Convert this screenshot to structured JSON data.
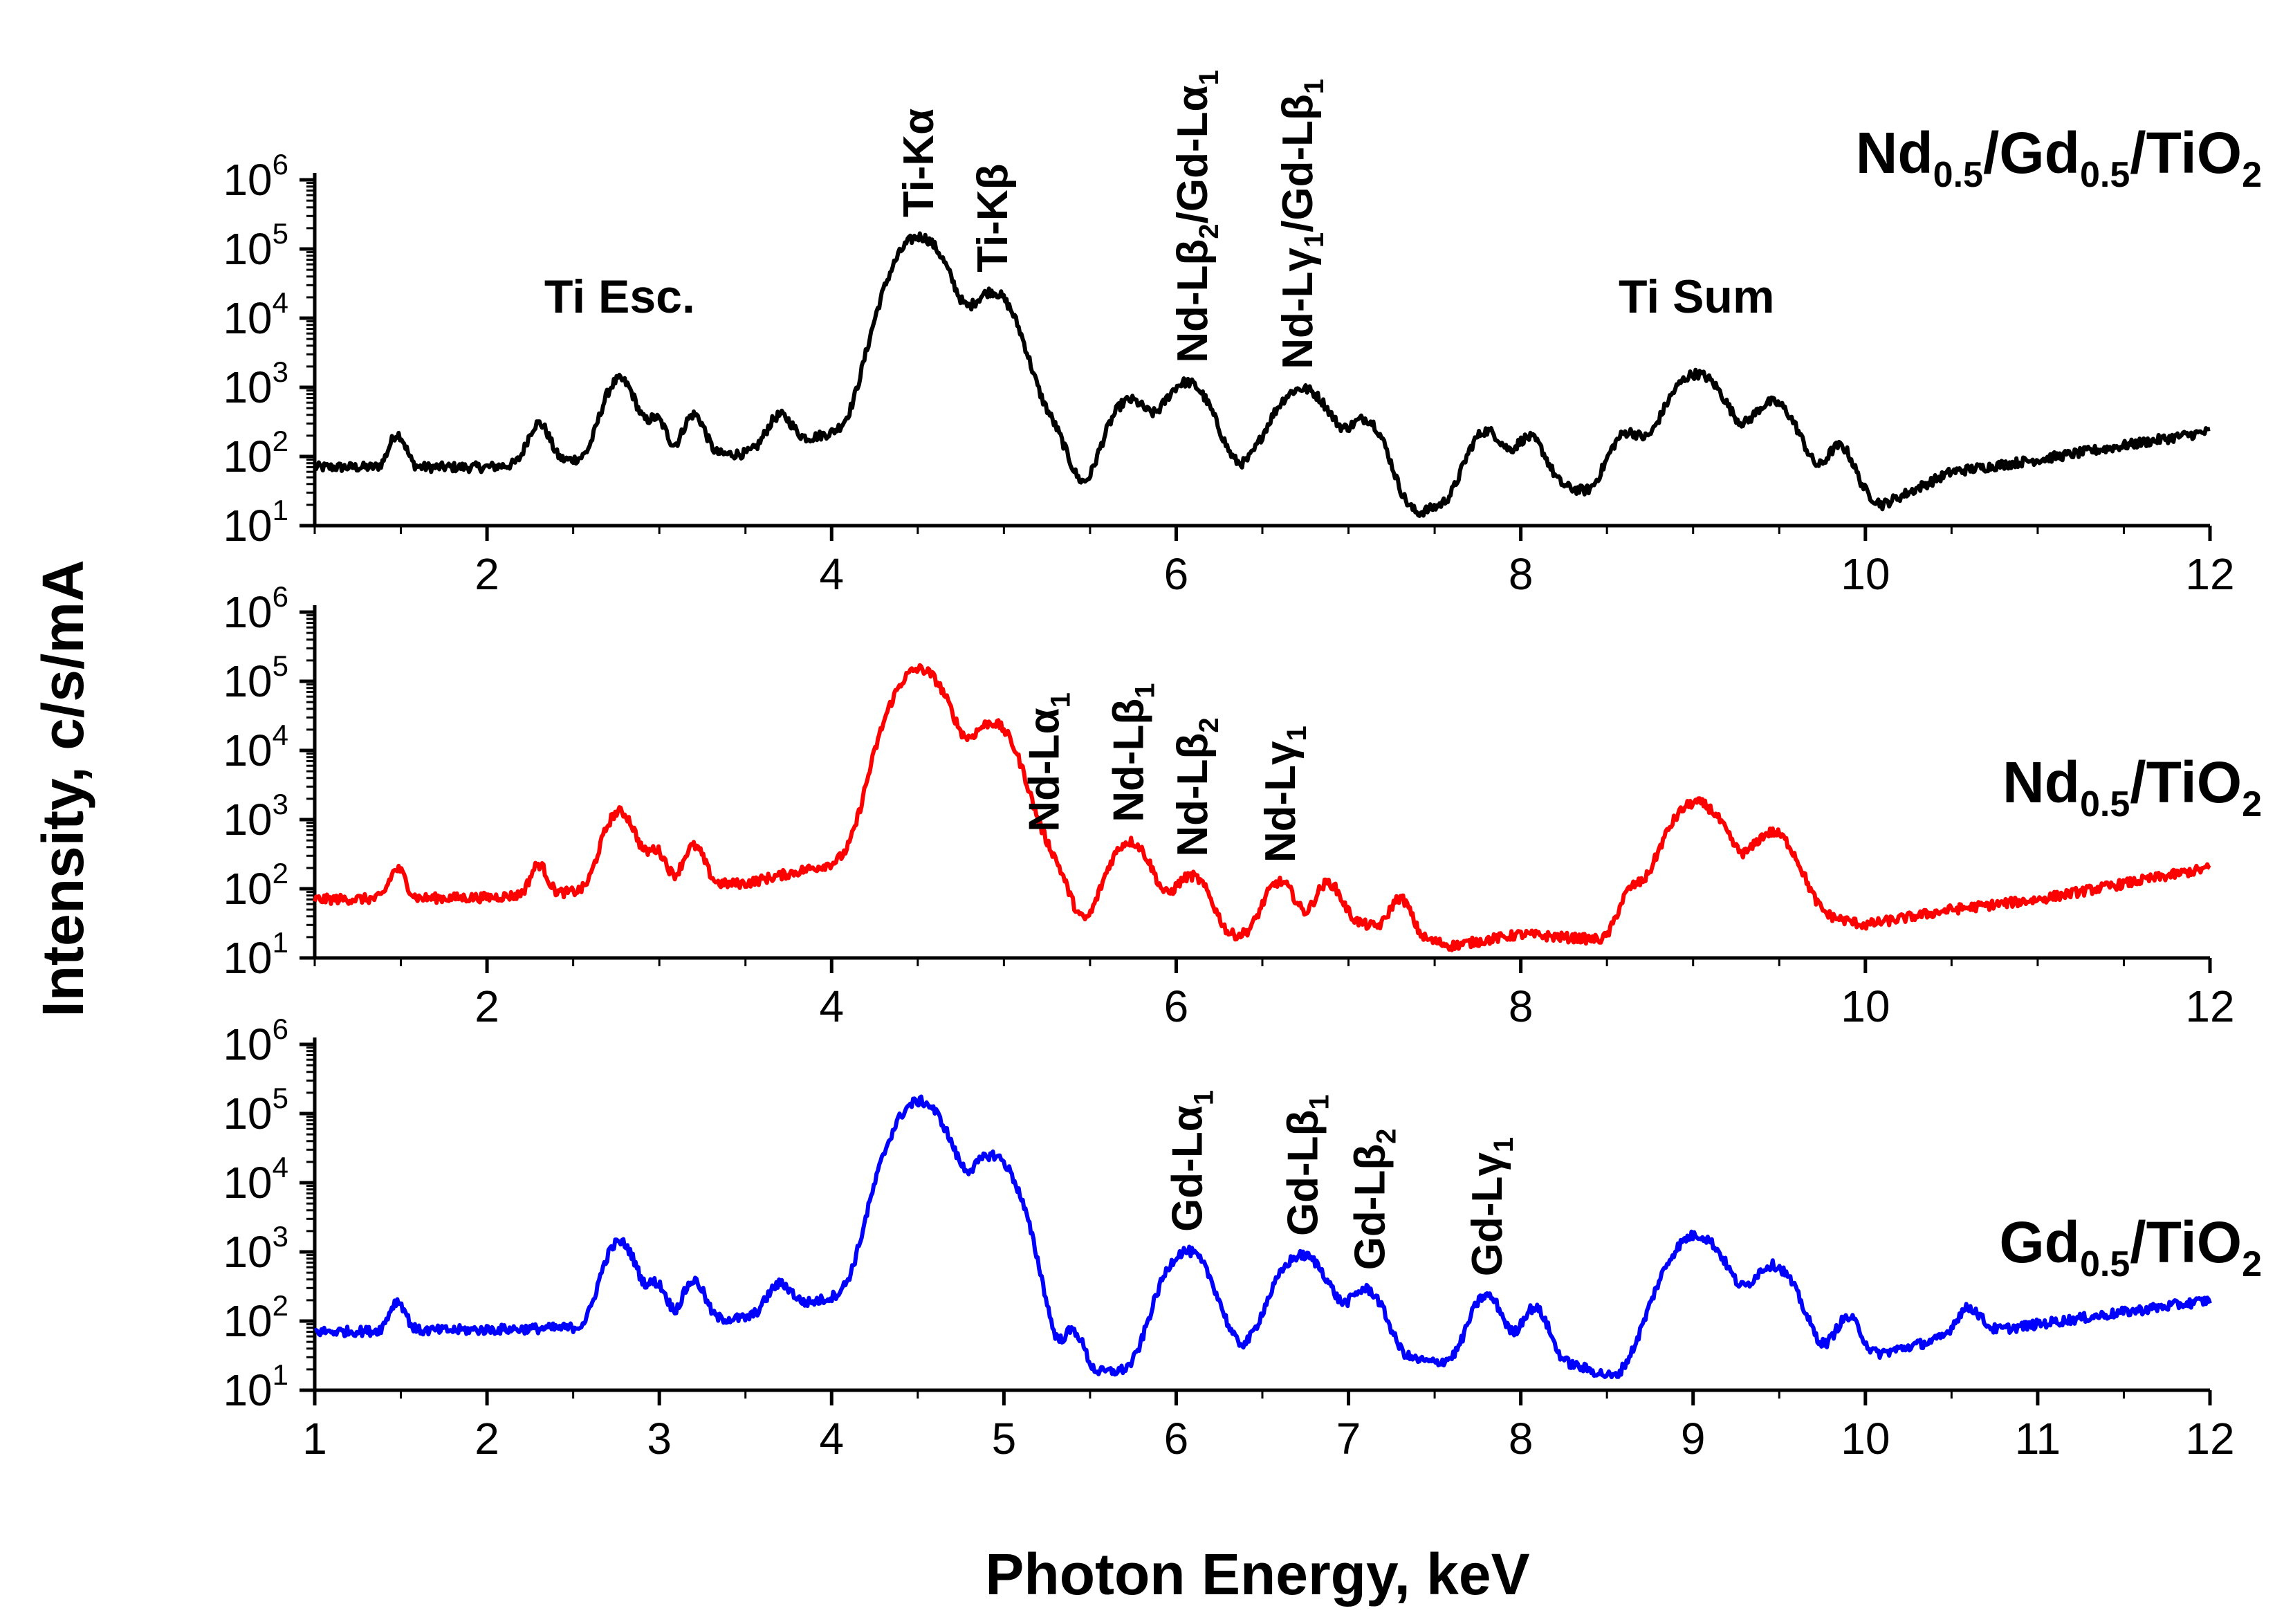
{
  "chart_data": {
    "type": "line",
    "scale": "log-y",
    "xlabel": "Photon Energy, keV",
    "ylabel": "Intensity, c/s/mA",
    "xlim": [
      1,
      12
    ],
    "ylim": [
      10,
      1000000
    ],
    "y_ticks": [
      {
        "base": "10",
        "exp": "1"
      },
      {
        "base": "10",
        "exp": "2"
      },
      {
        "base": "10",
        "exp": "3"
      },
      {
        "base": "10",
        "exp": "4"
      },
      {
        "base": "10",
        "exp": "5"
      },
      {
        "base": "10",
        "exp": "6"
      }
    ],
    "x_ticks_top": [
      "2",
      "4",
      "6",
      "8",
      "10",
      "12"
    ],
    "x_ticks_bottom": [
      "1",
      "2",
      "3",
      "4",
      "5",
      "6",
      "7",
      "8",
      "9",
      "10",
      "11",
      "12"
    ],
    "panels": [
      {
        "color": "#000000",
        "title": {
          "p1": "Nd",
          "s1": "0.5",
          "p2": "/Gd",
          "s2": "0.5",
          "p3": "/TiO",
          "s3": "2"
        },
        "baseline": [
          [
            1.0,
            70
          ],
          [
            1.5,
            70
          ],
          [
            2.0,
            70
          ],
          [
            2.5,
            90
          ],
          [
            3.0,
            100
          ],
          [
            3.5,
            110
          ],
          [
            4.0,
            220
          ],
          [
            4.3,
            500
          ],
          [
            5.0,
            80
          ],
          [
            5.5,
            30
          ],
          [
            6.0,
            90
          ],
          [
            6.4,
            60
          ],
          [
            7.0,
            60
          ],
          [
            7.4,
            15
          ],
          [
            8.0,
            50
          ],
          [
            8.4,
            30
          ],
          [
            9.0,
            60
          ],
          [
            9.5,
            60
          ],
          [
            9.9,
            40
          ],
          [
            10.1,
            20
          ],
          [
            10.5,
            60
          ],
          [
            11.0,
            90
          ],
          [
            12.0,
            230
          ]
        ],
        "peaks": [
          [
            1.48,
            140,
            0.04
          ],
          [
            2.3,
            220,
            0.05
          ],
          [
            2.77,
            1200,
            0.07
          ],
          [
            2.98,
            250,
            0.05
          ],
          [
            3.2,
            300,
            0.05
          ],
          [
            3.7,
            250,
            0.06
          ],
          [
            4.51,
            150000,
            0.11
          ],
          [
            4.93,
            24000,
            0.1
          ],
          [
            5.23,
            300,
            0.08
          ],
          [
            5.73,
            600,
            0.09
          ],
          [
            6.06,
            1100,
            0.1
          ],
          [
            6.73,
            900,
            0.12
          ],
          [
            7.1,
            300,
            0.08
          ],
          [
            7.8,
            200,
            0.08
          ],
          [
            8.05,
            140,
            0.07
          ],
          [
            8.62,
            180,
            0.08
          ],
          [
            9.02,
            1500,
            0.12
          ],
          [
            9.46,
            550,
            0.1
          ],
          [
            9.85,
            100,
            0.06
          ]
        ],
        "labels": [
          {
            "x": 4.5,
            "parts": [
              {
                "t": "Ti-K"
              },
              {
                "t": "α"
              }
            ]
          },
          {
            "x": 4.93,
            "parts": [
              {
                "t": "Ti-K"
              },
              {
                "t": "β"
              }
            ]
          },
          {
            "x": 6.09,
            "parts": [
              {
                "t": "Nd-L"
              },
              {
                "t": "β"
              },
              {
                "t": "2",
                "sub": true
              },
              {
                "t": "/Gd-L"
              },
              {
                "t": "α"
              },
              {
                "t": "1",
                "sub": true
              }
            ]
          },
          {
            "x": 6.7,
            "parts": [
              {
                "t": "Nd-L"
              },
              {
                "t": "γ"
              },
              {
                "t": "1",
                "sub": true
              },
              {
                "t": "/Gd-L"
              },
              {
                "t": "β"
              },
              {
                "t": "1",
                "sub": true
              }
            ]
          }
        ],
        "horizontal_labels": [
          {
            "x": 2.77,
            "y": 12000,
            "text": "Ti Esc."
          },
          {
            "x": 9.02,
            "y": 12000,
            "text": "Ti Sum"
          }
        ]
      },
      {
        "color": "#ff0000",
        "title": {
          "p1": "Nd",
          "s1": "0.5",
          "p2": "/TiO",
          "s2": "2"
        },
        "baseline": [
          [
            1.0,
            70
          ],
          [
            2.0,
            75
          ],
          [
            2.5,
            90
          ],
          [
            3.0,
            110
          ],
          [
            3.5,
            120
          ],
          [
            4.0,
            230
          ],
          [
            4.3,
            500
          ],
          [
            5.5,
            25
          ],
          [
            6.0,
            40
          ],
          [
            6.3,
            20
          ],
          [
            7.0,
            35
          ],
          [
            7.6,
            15
          ],
          [
            8.0,
            22
          ],
          [
            8.5,
            18
          ],
          [
            9.0,
            60
          ],
          [
            9.6,
            50
          ],
          [
            10.0,
            30
          ],
          [
            10.5,
            50
          ],
          [
            11.0,
            70
          ],
          [
            12.0,
            200
          ]
        ],
        "peaks": [
          [
            1.48,
            120,
            0.04
          ],
          [
            2.3,
            140,
            0.04
          ],
          [
            2.77,
            1200,
            0.07
          ],
          [
            2.98,
            250,
            0.05
          ],
          [
            3.2,
            300,
            0.05
          ],
          [
            4.51,
            150000,
            0.11
          ],
          [
            4.93,
            25000,
            0.1
          ],
          [
            5.23,
            300,
            0.08
          ],
          [
            5.73,
            450,
            0.09
          ],
          [
            6.09,
            120,
            0.08
          ],
          [
            6.6,
            100,
            0.07
          ],
          [
            6.88,
            90,
            0.06
          ],
          [
            7.3,
            50,
            0.05
          ],
          [
            8.65,
            70,
            0.06
          ],
          [
            9.02,
            1700,
            0.12
          ],
          [
            9.46,
            600,
            0.1
          ]
        ],
        "labels": [
          {
            "x": 5.23,
            "parts": [
              {
                "t": "Nd-L"
              },
              {
                "t": "α"
              },
              {
                "t": "1",
                "sub": true
              }
            ]
          },
          {
            "x": 5.72,
            "parts": [
              {
                "t": "Nd-L"
              },
              {
                "t": "β"
              },
              {
                "t": "1",
                "sub": true
              }
            ]
          },
          {
            "x": 6.09,
            "parts": [
              {
                "t": "Nd-L"
              },
              {
                "t": "β"
              },
              {
                "t": "2",
                "sub": true
              }
            ]
          },
          {
            "x": 6.6,
            "parts": [
              {
                "t": "Nd-L"
              },
              {
                "t": "γ"
              },
              {
                "t": "1",
                "sub": true
              }
            ]
          }
        ],
        "horizontal_labels": []
      },
      {
        "color": "#0000ff",
        "title": {
          "p1": "Gd",
          "s1": "0.5",
          "p2": "/TiO",
          "s2": "2"
        },
        "baseline": [
          [
            1.0,
            70
          ],
          [
            2.0,
            75
          ],
          [
            2.5,
            80
          ],
          [
            3.0,
            100
          ],
          [
            3.5,
            110
          ],
          [
            4.0,
            220
          ],
          [
            4.3,
            500
          ],
          [
            5.0,
            60
          ],
          [
            5.5,
            18
          ],
          [
            5.9,
            20
          ],
          [
            6.3,
            35
          ],
          [
            6.6,
            40
          ],
          [
            7.0,
            40
          ],
          [
            7.5,
            25
          ],
          [
            8.0,
            40
          ],
          [
            8.55,
            15
          ],
          [
            8.8,
            50
          ],
          [
            9.6,
            40
          ],
          [
            10.0,
            30
          ],
          [
            10.5,
            60
          ],
          [
            11.0,
            90
          ],
          [
            12.0,
            200
          ]
        ],
        "peaks": [
          [
            1.48,
            120,
            0.04
          ],
          [
            2.77,
            1300,
            0.07
          ],
          [
            2.98,
            250,
            0.05
          ],
          [
            3.2,
            280,
            0.05
          ],
          [
            3.7,
            200,
            0.06
          ],
          [
            4.51,
            150000,
            0.11
          ],
          [
            4.93,
            25000,
            0.1
          ],
          [
            5.4,
            50,
            0.05
          ],
          [
            6.06,
            1000,
            0.1
          ],
          [
            6.73,
            850,
            0.11
          ],
          [
            7.1,
            250,
            0.08
          ],
          [
            7.8,
            200,
            0.07
          ],
          [
            8.08,
            120,
            0.06
          ],
          [
            9.02,
            1700,
            0.12
          ],
          [
            9.46,
            600,
            0.1
          ],
          [
            9.9,
            80,
            0.06
          ],
          [
            10.6,
            90,
            0.06
          ]
        ],
        "labels": [
          {
            "x": 6.06,
            "parts": [
              {
                "t": "Gd-L"
              },
              {
                "t": "α"
              },
              {
                "t": "1",
                "sub": true
              }
            ]
          },
          {
            "x": 6.73,
            "parts": [
              {
                "t": "Gd-L"
              },
              {
                "t": "β"
              },
              {
                "t": "1",
                "sub": true
              }
            ]
          },
          {
            "x": 7.12,
            "parts": [
              {
                "t": "Gd-L"
              },
              {
                "t": "β"
              },
              {
                "t": "2",
                "sub": true
              }
            ]
          },
          {
            "x": 7.8,
            "parts": [
              {
                "t": "Gd-L"
              },
              {
                "t": "γ"
              },
              {
                "t": "1",
                "sub": true
              }
            ]
          }
        ],
        "horizontal_labels": []
      }
    ]
  }
}
